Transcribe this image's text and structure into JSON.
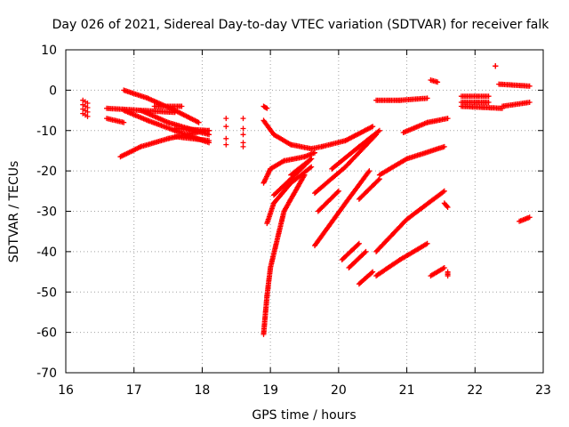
{
  "chart_data": {
    "type": "scatter",
    "title": "Day 026 of 2021, Sidereal Day-to-day VTEC variation (SDTVAR) for receiver falk",
    "xlabel": "GPS time / hours",
    "ylabel": "SDTVAR / TECUs",
    "xlim": [
      16,
      23
    ],
    "ylim": [
      -70,
      10
    ],
    "xticks": [
      16,
      17,
      18,
      19,
      20,
      21,
      22,
      23
    ],
    "yticks": [
      10,
      0,
      -10,
      -20,
      -30,
      -40,
      -50,
      -60,
      -70
    ],
    "grid": true,
    "marker": "+",
    "color": "#ff0000",
    "series": [
      {
        "name": "arc01",
        "x": [
          16.25,
          16.32
        ],
        "y": [
          -2.5,
          -2.5
        ],
        "spread": [
          0,
          -4
        ]
      },
      {
        "name": "arc02",
        "x": [
          16.6,
          16.85
        ],
        "y": [
          -7,
          -8
        ]
      },
      {
        "name": "arc03",
        "x": [
          16.6,
          17.6
        ],
        "y": [
          -4.5,
          -5.5
        ]
      },
      {
        "name": "arc04",
        "x": [
          16.85,
          17.2,
          17.6,
          17.95
        ],
        "y": [
          0,
          -2,
          -5,
          -8
        ]
      },
      {
        "name": "arc05",
        "x": [
          16.85,
          17.2,
          17.6,
          18.1
        ],
        "y": [
          -5,
          -7.5,
          -10,
          -13
        ]
      },
      {
        "name": "arc06",
        "x": [
          16.8,
          17.1,
          17.5,
          17.9,
          18.1
        ],
        "y": [
          -16.5,
          -14,
          -12,
          -10.5,
          -10
        ]
      },
      {
        "name": "arc07",
        "x": [
          17.1,
          17.5,
          18.1
        ],
        "y": [
          -5,
          -8,
          -11
        ]
      },
      {
        "name": "arc08",
        "x": [
          17.3,
          17.7
        ],
        "y": [
          -4,
          -4
        ]
      },
      {
        "name": "arc09",
        "x": [
          17.6,
          18.1
        ],
        "y": [
          -9.5,
          -10
        ]
      },
      {
        "name": "arc10",
        "x": [
          17.6,
          18.1
        ],
        "y": [
          -11.5,
          -12.5
        ]
      },
      {
        "name": "arc11",
        "x": [
          18.35,
          18.35,
          18.35,
          18.35
        ],
        "y": [
          -7,
          -9,
          -12,
          -13.5
        ],
        "dots": true
      },
      {
        "name": "arc12",
        "x": [
          18.6,
          18.6,
          18.6,
          18.6,
          18.6
        ],
        "y": [
          -7,
          -9.5,
          -11,
          -13,
          -14
        ],
        "dots": true
      },
      {
        "name": "arc13",
        "x": [
          18.9,
          18.95
        ],
        "y": [
          -4,
          -4.5
        ]
      },
      {
        "name": "arc14",
        "x": [
          18.9,
          19.05,
          19.3,
          19.6,
          19.75
        ],
        "y": [
          -7.5,
          -11,
          -13.5,
          -14.5,
          -14
        ]
      },
      {
        "name": "arc15",
        "x": [
          19.75,
          20.1,
          20.5
        ],
        "y": [
          -14,
          -12.5,
          -9
        ]
      },
      {
        "name": "arc16",
        "x": [
          18.9,
          19.0,
          19.2,
          19.5,
          19.65
        ],
        "y": [
          -23,
          -19.5,
          -17.5,
          -16.5,
          -15.5
        ]
      },
      {
        "name": "arc17",
        "x": [
          18.9,
          18.95,
          19.0,
          19.2,
          19.5
        ],
        "y": [
          -60.5,
          -51,
          -44,
          -30,
          -21
        ]
      },
      {
        "name": "arc18",
        "x": [
          18.95,
          19.05,
          19.3,
          19.6
        ],
        "y": [
          -33,
          -28,
          -23,
          -19
        ]
      },
      {
        "name": "arc19",
        "x": [
          19.05,
          19.3,
          19.6
        ],
        "y": [
          -26,
          -22,
          -17
        ]
      },
      {
        "name": "arc20",
        "x": [
          19.3,
          19.6
        ],
        "y": [
          -21,
          -17
        ]
      },
      {
        "name": "arc21",
        "x": [
          19.65,
          20.1,
          20.55
        ],
        "y": [
          -25.5,
          -19,
          -11
        ]
      },
      {
        "name": "arc22",
        "x": [
          19.65,
          20.1,
          20.45
        ],
        "y": [
          -38.5,
          -28,
          -20
        ]
      },
      {
        "name": "arc23",
        "x": [
          19.9,
          20.3,
          20.6
        ],
        "y": [
          -19.5,
          -14,
          -10
        ]
      },
      {
        "name": "arc24",
        "x": [
          19.7,
          20.0
        ],
        "y": [
          -30,
          -25
        ]
      },
      {
        "name": "arc25",
        "x": [
          20.05,
          20.3
        ],
        "y": [
          -42,
          -38
        ]
      },
      {
        "name": "arc26",
        "x": [
          20.15,
          20.4
        ],
        "y": [
          -44,
          -40
        ]
      },
      {
        "name": "arc27",
        "x": [
          20.3,
          20.5
        ],
        "y": [
          -48,
          -45
        ]
      },
      {
        "name": "arc28",
        "x": [
          20.3,
          20.6
        ],
        "y": [
          -27,
          -22
        ]
      },
      {
        "name": "arc29",
        "x": [
          20.55,
          20.9,
          21.3
        ],
        "y": [
          -2.5,
          -2.5,
          -2
        ]
      },
      {
        "name": "arc30",
        "x": [
          20.6,
          21.0,
          21.55
        ],
        "y": [
          -21,
          -17,
          -14
        ]
      },
      {
        "name": "arc31",
        "x": [
          20.55,
          20.9,
          21.3
        ],
        "y": [
          -46,
          -42,
          -38
        ]
      },
      {
        "name": "arc32",
        "x": [
          20.55,
          21.0,
          21.55
        ],
        "y": [
          -40,
          -32,
          -25
        ]
      },
      {
        "name": "arc33",
        "x": [
          20.95,
          21.3,
          21.6
        ],
        "y": [
          -10.5,
          -8,
          -7
        ]
      },
      {
        "name": "arc34",
        "x": [
          21.35,
          21.45
        ],
        "y": [
          2.5,
          2
        ]
      },
      {
        "name": "arc35",
        "x": [
          21.35,
          21.55
        ],
        "y": [
          -46,
          -44
        ]
      },
      {
        "name": "arc36",
        "x": [
          21.55,
          21.6
        ],
        "y": [
          -28,
          -29
        ]
      },
      {
        "name": "arc37",
        "x": [
          21.6,
          21.6
        ],
        "y": [
          -45,
          -46
        ]
      },
      {
        "name": "arc38",
        "x": [
          21.8,
          22.2
        ],
        "y": [
          -1.5,
          -1.5
        ]
      },
      {
        "name": "arc39",
        "x": [
          21.8,
          22.2
        ],
        "y": [
          -3,
          -3
        ]
      },
      {
        "name": "arc40",
        "x": [
          21.8,
          22.4
        ],
        "y": [
          -4,
          -4.5
        ]
      },
      {
        "name": "arc41",
        "x": [
          22.4,
          22.8
        ],
        "y": [
          -4,
          -3
        ]
      },
      {
        "name": "arc42",
        "x": [
          22.3,
          22.3
        ],
        "y": [
          6,
          6
        ]
      },
      {
        "name": "arc43",
        "x": [
          22.35,
          22.8
        ],
        "y": [
          1.5,
          1
        ]
      },
      {
        "name": "arc44",
        "x": [
          22.65,
          22.8
        ],
        "y": [
          -32.5,
          -31.5
        ]
      }
    ]
  }
}
